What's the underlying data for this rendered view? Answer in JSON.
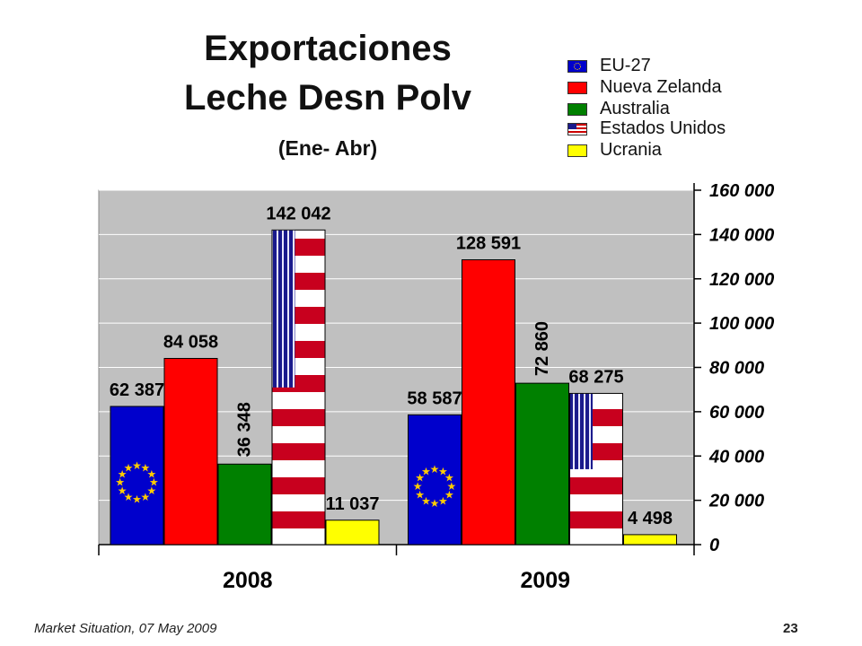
{
  "title_line1": "Exportaciones",
  "title_line2": "Leche Desn Polv",
  "subtitle": "(Ene- Abr)",
  "legend": [
    {
      "label": "EU-27",
      "icon": "eu-flag-icon",
      "color": "#0000cc"
    },
    {
      "label": "Nueva Zelanda",
      "icon": "",
      "color": "#ff0000"
    },
    {
      "label": "Australia",
      "icon": "",
      "color": "#008000"
    },
    {
      "label": "Estados Unidos",
      "icon": "us-flag-icon",
      "color": "#cc0000"
    },
    {
      "label": "Ucrania",
      "icon": "",
      "color": "#ffff00"
    }
  ],
  "chart_data": {
    "type": "bar",
    "categories": [
      "2008",
      "2009"
    ],
    "series": [
      {
        "name": "EU-27",
        "values": [
          62387,
          58587
        ],
        "labels": [
          "62 387",
          "58 587"
        ],
        "color": "#0000cc",
        "pattern": "eu-flag"
      },
      {
        "name": "Nueva Zelanda",
        "values": [
          84058,
          128591
        ],
        "labels": [
          "84 058",
          "128 591"
        ],
        "color": "#ff0000"
      },
      {
        "name": "Australia",
        "values": [
          36348,
          72860
        ],
        "labels": [
          "36 348",
          "72 860"
        ],
        "color": "#008000",
        "vertical_labels": true
      },
      {
        "name": "Estados Unidos",
        "values": [
          142042,
          68275
        ],
        "labels": [
          "142 042",
          "68 275"
        ],
        "color": "#cc0000",
        "pattern": "us-flag"
      },
      {
        "name": "Ucrania",
        "values": [
          11037,
          4498
        ],
        "labels": [
          "11 037",
          "4 498"
        ],
        "color": "#ffff00"
      }
    ],
    "ylim": [
      0,
      160000
    ],
    "yticks": [
      "0",
      "20 000",
      "40 000",
      "60 000",
      "80 000",
      "100 000",
      "120 000",
      "140 000",
      "160 000"
    ],
    "ytick_values": [
      0,
      20000,
      40000,
      60000,
      80000,
      100000,
      120000,
      140000,
      160000
    ],
    "grid": true,
    "legend_position": "top-right",
    "plot_background": "#c0c0c0"
  },
  "footer": {
    "source": "Market Situation, 07 May 2009",
    "page_number": "23"
  }
}
